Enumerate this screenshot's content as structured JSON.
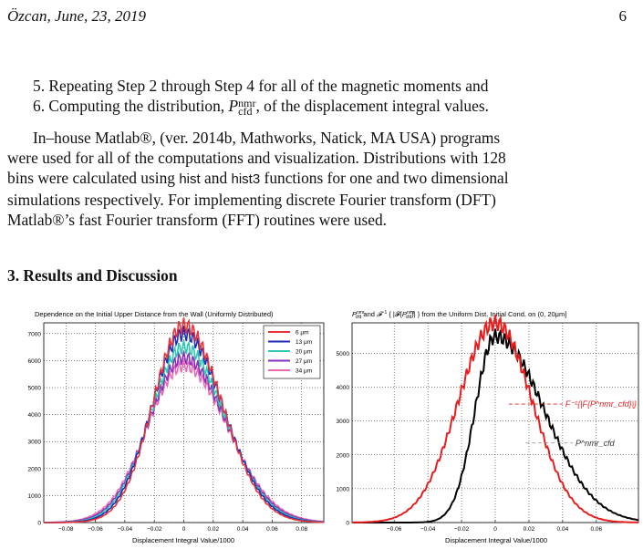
{
  "header": {
    "left": "Özcan, June, 23, 2019",
    "right": "6"
  },
  "list": [
    {
      "num": "5.",
      "text": "Repeating Step 2 through Step 4 for all of the magnetic moments and"
    },
    {
      "num": "6.",
      "text_before": "Computing the distribution, ",
      "sym_main": "P",
      "sym_sup": "nmr",
      "sym_sub": "cfd",
      "text_after": ", of the displacement integral values."
    }
  ],
  "paragraph": {
    "line1": "In–house Matlab®, (ver. 2014b, Mathworks, Natick, MA USA) programs",
    "line2": "were used for all of the computations and visualization. Distributions with 128",
    "line3_before": "bins were calculated using ",
    "code1": "hist",
    "line3_mid": " and ",
    "code2": "hist3",
    "line3_after": " functions for one and two dimensional",
    "line4": "simulations respectively. For implementing discrete Fourier transform (DFT)",
    "line5": "Matlab®’s fast Fourier transform (FFT) routines were used."
  },
  "section_title": "3.  Results and Discussion",
  "colors": {
    "c6": "#e8323c",
    "c13": "#1e2bb4",
    "c20": "#2ec8b0",
    "c27": "#8a2fb8",
    "c34": "#e86ab4",
    "red": "#e81e1e",
    "black": "#000000"
  },
  "chart_data": [
    {
      "type": "line",
      "title": "Dependence on the Initial Upper Distance from the Wall (Uniformly Distributed)",
      "xlabel": "Displacement Integral Value/1000",
      "ylabel": "",
      "xlim": [
        -0.095,
        0.095
      ],
      "ylim": [
        0,
        7400
      ],
      "xticks": [
        "−0.08",
        "−0.06",
        "−0.04",
        "−0.02",
        "0",
        "0.02",
        "0.04",
        "0.06",
        "0.08"
      ],
      "xtick_values": [
        -0.08,
        -0.06,
        -0.04,
        -0.02,
        0,
        0.02,
        0.04,
        0.06,
        0.08
      ],
      "yticks": [
        0,
        1000,
        2000,
        3000,
        4000,
        5000,
        6000,
        7000
      ],
      "grid": true,
      "legend_position": "top-right",
      "series": [
        {
          "name": "6 μm",
          "peak": 7300,
          "sl": 0.021,
          "sr": 0.026
        },
        {
          "name": "13 μm",
          "peak": 7000,
          "sl": 0.022,
          "sr": 0.027
        },
        {
          "name": "20 μm",
          "peak": 6500,
          "sl": 0.023,
          "sr": 0.028
        },
        {
          "name": "27 μm",
          "peak": 6100,
          "sl": 0.024,
          "sr": 0.029
        },
        {
          "name": "34 μm",
          "peak": 5800,
          "sl": 0.025,
          "sr": 0.03
        }
      ]
    },
    {
      "type": "line",
      "title": "P^nmr_cfd and F^-1{|F{P^nmr_cfd}|} from the Uniform Dist. Initial Cond. on (0, 20μm]",
      "xlabel": "Displacement Integral Value/1000",
      "ylabel": "",
      "xlim": [
        -0.085,
        0.085
      ],
      "ylim": [
        0,
        5900
      ],
      "xticks": [
        "−0.06",
        "−0.04",
        "−0.02",
        "0",
        "0.02",
        "0.04",
        "0.06"
      ],
      "xtick_values": [
        -0.06,
        -0.04,
        -0.02,
        0,
        0.02,
        0.04,
        0.06
      ],
      "yticks": [
        0,
        1000,
        2000,
        3000,
        4000,
        5000
      ],
      "grid": true,
      "annotations": [
        {
          "label": "F⁻¹{|F{P^nmr_cfd}|}",
          "color": "red"
        },
        {
          "label": "P^nmr_cfd",
          "color": "gray"
        }
      ],
      "series": [
        {
          "name": "F⁻¹{|F{P^nmr_cfd}|}",
          "peak": 5900,
          "sl": 0.022,
          "sr": 0.022
        },
        {
          "name": "P^nmr_cfd",
          "peak": 5500,
          "sl": 0.012,
          "sr": 0.029
        }
      ]
    }
  ]
}
